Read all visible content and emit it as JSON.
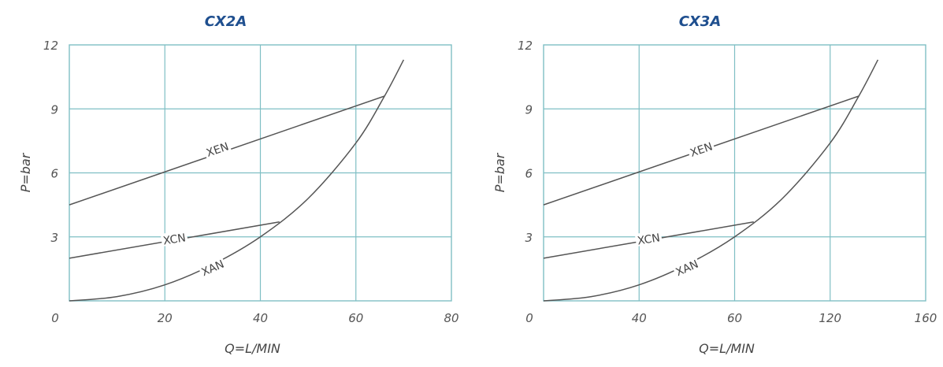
{
  "chart_data": [
    {
      "type": "line",
      "title": "CX2A",
      "xlabel": "Q=L/MIN",
      "ylabel": "P=bar",
      "xlim": [
        0,
        80
      ],
      "ylim": [
        0,
        12
      ],
      "xticks": [
        0,
        20,
        40,
        60,
        80
      ],
      "yticks": [
        3,
        6,
        9,
        12
      ],
      "grid": true,
      "legend": "none",
      "series": [
        {
          "name": "XEN",
          "label_at": [
            31,
            7.1
          ],
          "label_angle": -19,
          "x": [
            0,
            66
          ],
          "y": [
            4.5,
            9.6
          ]
        },
        {
          "name": "XCN",
          "label_at": [
            22,
            2.9
          ],
          "label_angle": -9,
          "x": [
            0,
            44
          ],
          "y": [
            2.0,
            3.7
          ]
        },
        {
          "name": "XAN",
          "label_at": [
            30,
            1.55
          ],
          "label_angle": -24,
          "x": [
            0,
            10,
            20,
            30,
            40,
            50,
            60,
            66,
            70
          ],
          "y": [
            0,
            0.2,
            0.75,
            1.7,
            3.0,
            4.8,
            7.4,
            9.6,
            11.3
          ]
        }
      ]
    },
    {
      "type": "line",
      "title": "CX3A",
      "xlabel": "Q=L/MIN",
      "ylabel": "P=bar",
      "xlim": [
        0,
        160
      ],
      "ylim": [
        0,
        12
      ],
      "xticks": [
        0,
        40,
        60,
        120,
        160
      ],
      "yticks": [
        3,
        6,
        9,
        12
      ],
      "grid": true,
      "legend": "none",
      "series": [
        {
          "name": "XEN",
          "label_at": [
            66,
            7.1
          ],
          "label_angle": -19,
          "x": [
            0,
            132
          ],
          "y": [
            4.5,
            9.6
          ]
        },
        {
          "name": "XCN",
          "label_at": [
            44,
            2.9
          ],
          "label_angle": -9,
          "x": [
            0,
            88
          ],
          "y": [
            2.0,
            3.7
          ]
        },
        {
          "name": "XAN",
          "label_at": [
            60,
            1.55
          ],
          "label_angle": -24,
          "x": [
            0,
            20,
            40,
            60,
            80,
            100,
            120,
            132,
            140
          ],
          "y": [
            0,
            0.2,
            0.75,
            1.7,
            3.0,
            4.8,
            7.4,
            9.6,
            11.3
          ]
        }
      ]
    }
  ]
}
